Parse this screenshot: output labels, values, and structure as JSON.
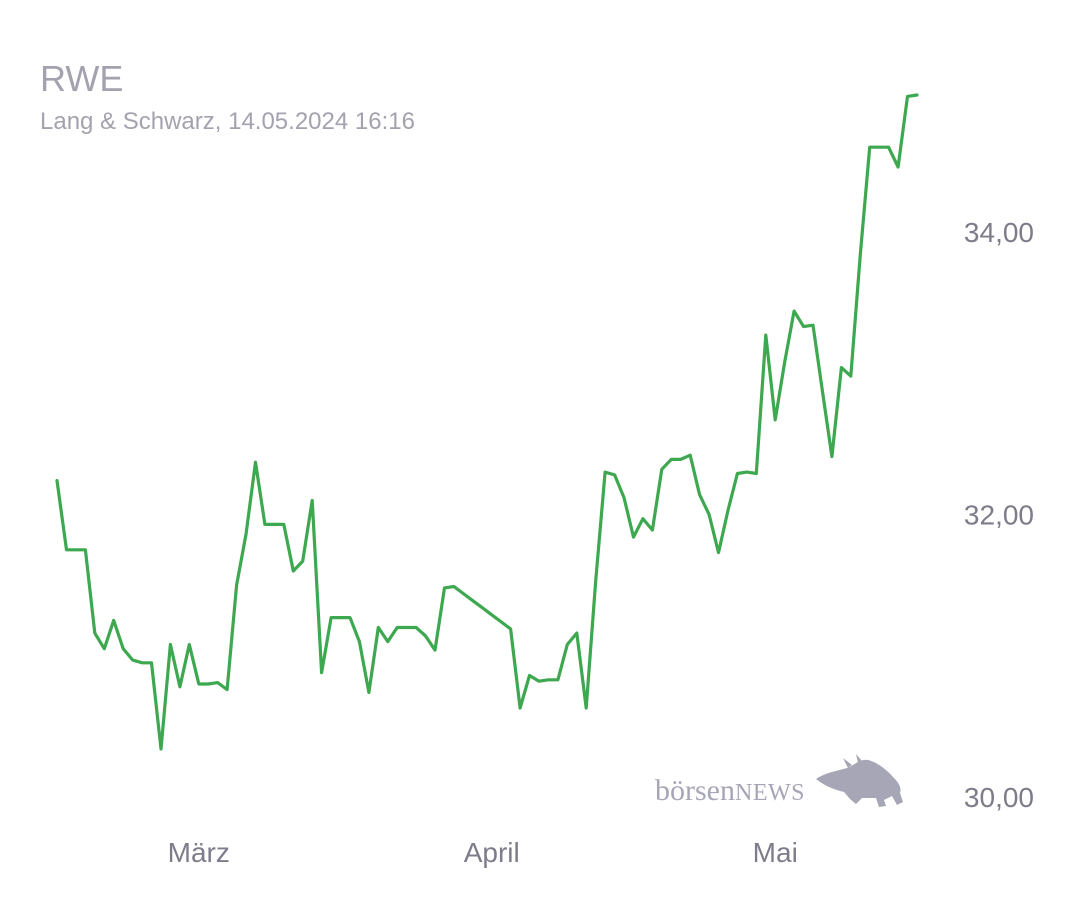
{
  "header": {
    "title": "RWE",
    "subtitle": "Lang & Schwarz, 14.05.2024 16:16"
  },
  "watermark": {
    "brand_part1": "börsen",
    "brand_part2": "NEWS",
    "icon": "bull-icon"
  },
  "colors": {
    "line": "#3da84f",
    "text": "#7d7c8a",
    "title": "#a3a2ae",
    "watermark": "#a6a6b6"
  },
  "chart_data": {
    "type": "line",
    "title": "RWE",
    "xlabel": "",
    "ylabel": "",
    "ylim": [
      29.7,
      35.1
    ],
    "yticks": [
      {
        "value": 30,
        "label": "30,00"
      },
      {
        "value": 32,
        "label": "32,00"
      },
      {
        "value": 34,
        "label": "34,00"
      }
    ],
    "xticks": [
      {
        "index": 15,
        "label": "März"
      },
      {
        "index": 46,
        "label": "April"
      },
      {
        "index": 76,
        "label": "Mai"
      }
    ],
    "grid": false,
    "series": [
      {
        "values": [
          32.24,
          31.75,
          31.75,
          31.75,
          31.16,
          31.05,
          31.25,
          31.05,
          30.97,
          30.95,
          30.95,
          30.34,
          31.08,
          30.78,
          31.08,
          30.8,
          30.8,
          30.81,
          30.76,
          31.5,
          31.86,
          32.37,
          31.93,
          31.93,
          31.93,
          31.6,
          31.67,
          32.1,
          30.88,
          31.27,
          31.27,
          31.27,
          31.1,
          30.74,
          31.2,
          31.1,
          31.2,
          31.2,
          31.2,
          31.14,
          31.04,
          31.48,
          31.49,
          31.44,
          31.39,
          31.34,
          31.29,
          31.24,
          31.19,
          30.63,
          30.86,
          30.82,
          30.83,
          30.83,
          31.08,
          31.16,
          30.63,
          31.53,
          32.3,
          32.28,
          32.12,
          31.84,
          31.97,
          31.89,
          32.32,
          32.39,
          32.39,
          32.42,
          32.14,
          32.0,
          31.73,
          32.03,
          32.29,
          32.3,
          32.29,
          33.27,
          32.67,
          33.08,
          33.44,
          33.33,
          33.34,
          32.87,
          32.41,
          33.04,
          32.98,
          33.84,
          34.6,
          34.6,
          34.6,
          34.46,
          34.96,
          34.97
        ]
      }
    ]
  }
}
